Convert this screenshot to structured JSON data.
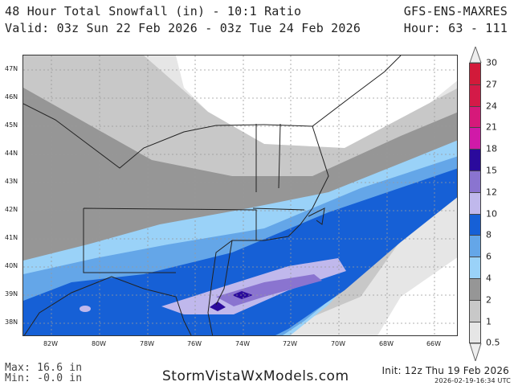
{
  "header": {
    "title": "48 Hour Total Snowfall (in) - 10:1 Ratio",
    "model": "GFS-ENS-MAXRES",
    "valid": "Valid: 03z Sun 22 Feb 2026 - 03z Tue 24 Feb 2026",
    "hours": "Hour: 63 - 111"
  },
  "map": {
    "lat_labels": [
      "47N",
      "46N",
      "45N",
      "44N",
      "43N",
      "42N",
      "41N",
      "40N",
      "39N",
      "38N"
    ],
    "lon_labels": [
      "82W",
      "80W",
      "78W",
      "76W",
      "74W",
      "72W",
      "70W",
      "68W",
      "66W"
    ]
  },
  "colorbar": {
    "levels": [
      "30",
      "27",
      "24",
      "21",
      "18",
      "15",
      "12",
      "10",
      "8",
      "6",
      "4",
      "2",
      "1",
      "0.5"
    ],
    "colors": [
      "#d21a3a",
      "#d41a48",
      "#d6197a",
      "#d01aa8",
      "#2a0a9c",
      "#8a74d0",
      "#c0b8ec",
      "#1660d6",
      "#64a6e8",
      "#9ad2f8",
      "#969696",
      "#c8c8c8",
      "#e6e6e6"
    ]
  },
  "footer": {
    "max": "Max: 16.6 in",
    "min": "Min: -0.0 in",
    "site": "StormVistaWxModels.com",
    "init": "Init: 12z Thu 19 Feb 2026",
    "stamp": "2026-02-19-16:34 UTC"
  }
}
